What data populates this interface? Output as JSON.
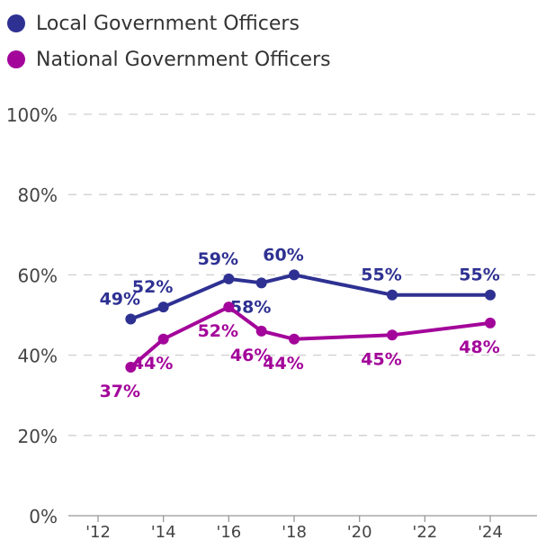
{
  "chart_data": {
    "type": "line",
    "title": "",
    "xlabel": "",
    "ylabel": "",
    "x_ticks": [
      "'12",
      "'14",
      "'16",
      "'18",
      "'20",
      "'22",
      "'24"
    ],
    "y_ticks": [
      "0%",
      "20%",
      "40%",
      "60%",
      "80%",
      "100%"
    ],
    "xlim": [
      2012,
      2024
    ],
    "ylim": [
      0,
      100
    ],
    "grid": true,
    "legend_position": "top-left",
    "series": [
      {
        "name": "Local Government Officers",
        "color": "#2e3192",
        "x": [
          2013,
          2014,
          2016,
          2017,
          2018,
          2021,
          2024
        ],
        "y": [
          49,
          52,
          59,
          58,
          60,
          55,
          55
        ],
        "labels": [
          "49%",
          "52%",
          "59%",
          "58%",
          "60%",
          "55%",
          "55%"
        ],
        "label_pos": [
          "above",
          "above",
          "above",
          "below",
          "above",
          "above",
          "above"
        ]
      },
      {
        "name": "National Government Officers",
        "color": "#a3059a",
        "x": [
          2013,
          2014,
          2016,
          2017,
          2018,
          2021,
          2024
        ],
        "y": [
          37,
          44,
          52,
          46,
          44,
          45,
          48
        ],
        "labels": [
          "37%",
          "44%",
          "52%",
          "46%",
          "44%",
          "45%",
          "48%"
        ],
        "label_pos": [
          "below",
          "below",
          "below",
          "below",
          "below",
          "below",
          "below"
        ]
      }
    ]
  }
}
